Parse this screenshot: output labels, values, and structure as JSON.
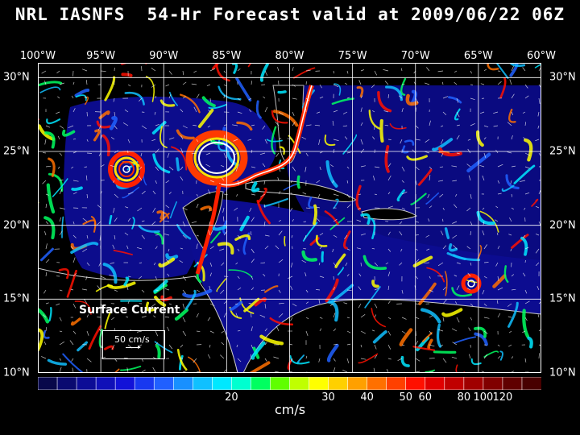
{
  "title": "NRL IASNFS  54-Hr Forecast valid at 2009/06/22 06Z",
  "lon_labels": [
    "100°W",
    "95°W",
    "90°W",
    "85°W",
    "80°W",
    "75°W",
    "70°W",
    "65°W",
    "60°W"
  ],
  "lat_labels": [
    "30°N",
    "25°N",
    "20°N",
    "15°N",
    "10°N"
  ],
  "lon_range": [
    -100,
    -60
  ],
  "lat_range": [
    10,
    31
  ],
  "legend": {
    "field_label": "Surface Current",
    "vector_scale_label": "50 cm/s"
  },
  "colorbar": {
    "ticks": [
      {
        "value": 20,
        "label": "20"
      },
      {
        "value": 30,
        "label": "30"
      },
      {
        "value": 40,
        "label": "40"
      },
      {
        "value": 50,
        "label": "50"
      },
      {
        "value": 60,
        "label": "60"
      },
      {
        "value": 80,
        "label": "80"
      },
      {
        "value": 100,
        "label": "100"
      },
      {
        "value": 120,
        "label": "120"
      }
    ],
    "units": "cm/s",
    "colors": [
      "#08084a",
      "#0a0a70",
      "#0c0c96",
      "#1010b8",
      "#1212d8",
      "#1838f0",
      "#2060ff",
      "#1890ff",
      "#10c0ff",
      "#00e8ff",
      "#00ffd0",
      "#00ff60",
      "#60ff00",
      "#c0ff00",
      "#ffff00",
      "#ffd000",
      "#ffa000",
      "#ff7000",
      "#ff4000",
      "#ff1000",
      "#e00000",
      "#c00000",
      "#a00000",
      "#800000",
      "#600000",
      "#480000"
    ]
  }
}
